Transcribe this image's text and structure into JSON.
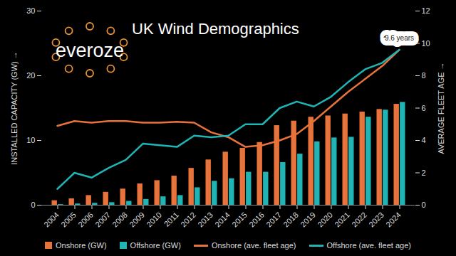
{
  "chart_data": {
    "type": "bar",
    "title": "UK Wind Demographics",
    "logo_text": "everoze",
    "categories": [
      "2004",
      "2005",
      "2006",
      "2007",
      "2008",
      "2009",
      "2010",
      "2011",
      "2012",
      "2013",
      "2014",
      "2015",
      "2016",
      "2017",
      "2018",
      "2019",
      "2020",
      "2021",
      "2022",
      "2023",
      "2024"
    ],
    "ylabel": "INSTALLED CAPACITY (GW)",
    "y2label": "AVERAGE FLEET AGE",
    "ylim": [
      0,
      30
    ],
    "yticks": [
      0,
      10,
      20,
      30
    ],
    "y2lim": [
      0,
      12
    ],
    "y2ticks": [
      0,
      2,
      4,
      6,
      8,
      10,
      12
    ],
    "grid": false,
    "legend": "bottom",
    "series": [
      {
        "name": "Onshore (GW)",
        "type": "bar",
        "color": "#e8733a",
        "values": [
          0.7,
          1.0,
          1.5,
          2.0,
          2.5,
          3.3,
          3.8,
          4.5,
          5.7,
          7.0,
          8.2,
          8.8,
          9.7,
          12.3,
          13.0,
          13.6,
          13.8,
          14.1,
          14.4,
          14.8,
          15.6
        ]
      },
      {
        "name": "Offshore (GW)",
        "type": "bar",
        "color": "#1fb5b5",
        "values": [
          0.1,
          0.2,
          0.3,
          0.4,
          0.6,
          0.9,
          1.3,
          1.5,
          2.7,
          3.7,
          4.1,
          5.1,
          5.1,
          6.6,
          7.9,
          9.8,
          10.4,
          10.5,
          13.6,
          14.7,
          15.9
        ]
      },
      {
        "name": "Onshore (ave. fleet age)",
        "type": "line",
        "axis": "y2",
        "color": "#e8733a",
        "values": [
          4.9,
          5.2,
          5.1,
          5.2,
          5.2,
          5.1,
          5.1,
          5.15,
          5.1,
          4.5,
          4.2,
          3.6,
          3.7,
          4.0,
          4.4,
          5.2,
          6.1,
          7.0,
          7.8,
          8.6,
          9.6
        ]
      },
      {
        "name": "Offshore (ave. fleet age)",
        "type": "line",
        "axis": "y2",
        "color": "#1fb5b5",
        "values": [
          1.0,
          2.0,
          1.7,
          2.3,
          2.8,
          3.8,
          3.7,
          3.6,
          4.3,
          4.2,
          4.3,
          5.0,
          5.0,
          6.0,
          6.4,
          6.1,
          6.7,
          7.6,
          8.4,
          8.8,
          9.6
        ]
      }
    ],
    "annotations": [
      {
        "text": "9.6 years",
        "x": "2024",
        "value": 9.6,
        "axis": "y2"
      }
    ]
  }
}
